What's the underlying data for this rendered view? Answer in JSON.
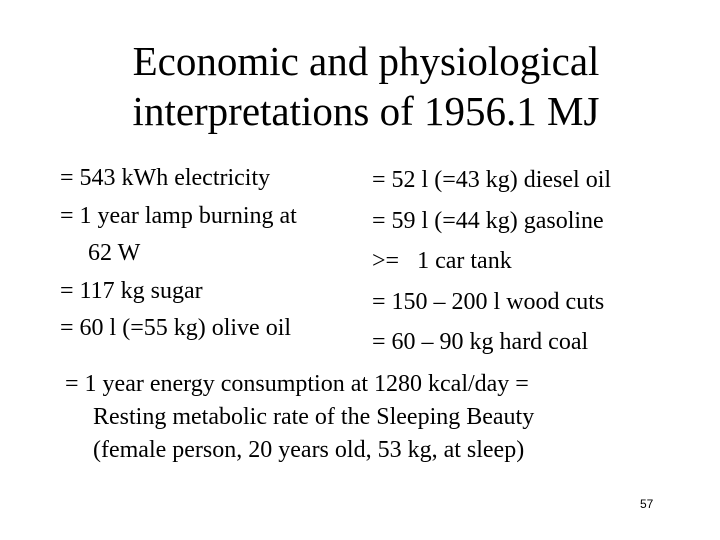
{
  "title": {
    "line1": "Economic and physiological",
    "line2": "interpretations of 1956.1 MJ"
  },
  "left_column": [
    "= 543 kWh electricity",
    "= 1 year lamp burning at",
    "62 W",
    "= 117 kg sugar",
    "= 60 l (=55 kg) olive oil"
  ],
  "right_column": [
    "= 52 l (=43 kg) diesel oil",
    "= 59 l (=44 kg) gasoline",
    ">=   1 car tank",
    "= 150 – 200 l wood cuts",
    "= 60 – 90 kg hard coal"
  ],
  "bottom": {
    "line1": "= 1 year energy consumption at 1280 kcal/day =",
    "line2": "Resting metabolic rate of the Sleeping Beauty",
    "line3": "(female person, 20 years old, 53 kg, at sleep)"
  },
  "page_number": "57"
}
